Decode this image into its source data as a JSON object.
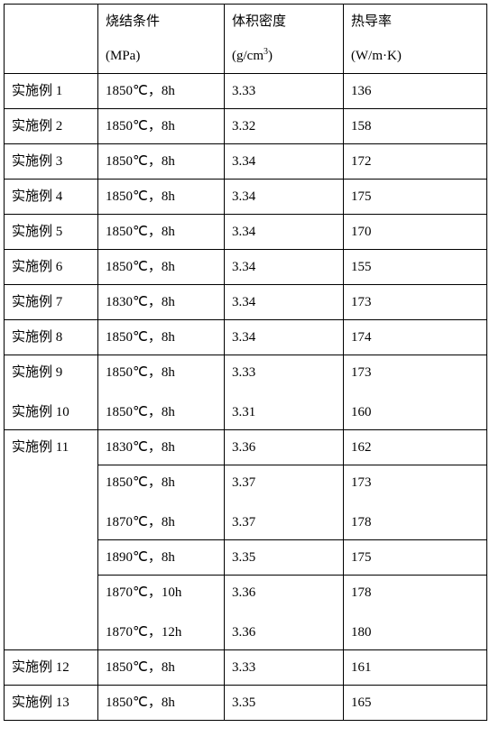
{
  "table": {
    "header": {
      "c1_line1": "烧结条件",
      "c1_line2": "(MPa)",
      "c2_line1": "体积密度",
      "c2_line2_prefix": "(g/cm",
      "c2_line2_sup": "3",
      "c2_line2_suffix": ")",
      "c3_line1": "热导率",
      "c3_line2": "(W/m·K)"
    },
    "r1": {
      "label": "实施例 1",
      "cond": "1850℃，8h",
      "dens": "3.33",
      "tc": "136"
    },
    "r2": {
      "label": "实施例 2",
      "cond": "1850℃，8h",
      "dens": "3.32",
      "tc": "158"
    },
    "r3": {
      "label": "实施例 3",
      "cond": "1850℃，8h",
      "dens": "3.34",
      "tc": "172"
    },
    "r4": {
      "label": "实施例 4",
      "cond": "1850℃，8h",
      "dens": "3.34",
      "tc": "175"
    },
    "r5": {
      "label": "实施例 5",
      "cond": "1850℃，8h",
      "dens": "3.34",
      "tc": "170"
    },
    "r6": {
      "label": "实施例 6",
      "cond": "1850℃，8h",
      "dens": "3.34",
      "tc": "155"
    },
    "r7": {
      "label": "实施例 7",
      "cond": "1830℃，8h",
      "dens": "3.34",
      "tc": "173"
    },
    "r8": {
      "label": "实施例 8",
      "cond": "1850℃，8h",
      "dens": "3.34",
      "tc": "174"
    },
    "r9a": {
      "label": "实施例 9",
      "cond": "1850℃，8h",
      "dens": "3.33",
      "tc": "173"
    },
    "r9b": {
      "label": "实施例 10",
      "cond": "1850℃，8h",
      "dens": "3.31",
      "tc": "160"
    },
    "r11": {
      "label": "实施例 11",
      "sub1": {
        "cond": "1830℃，8h",
        "dens": "3.36",
        "tc": "162"
      },
      "sub2a": {
        "cond": "1850℃，8h",
        "dens": "3.37",
        "tc": "173"
      },
      "sub2b": {
        "cond": "1870℃，8h",
        "dens": "3.37",
        "tc": "178"
      },
      "sub3": {
        "cond": "1890℃，8h",
        "dens": "3.35",
        "tc": "175"
      },
      "sub4a": {
        "cond": "1870℃，10h",
        "dens": "3.36",
        "tc": "178"
      },
      "sub4b": {
        "cond": "1870℃，12h",
        "dens": "3.36",
        "tc": "180"
      }
    },
    "r12": {
      "label": "实施例 12",
      "cond": "1850℃，8h",
      "dens": "3.33",
      "tc": "161"
    },
    "r13": {
      "label": "实施例 13",
      "cond": "1850℃，8h",
      "dens": "3.35",
      "tc": "165"
    }
  }
}
